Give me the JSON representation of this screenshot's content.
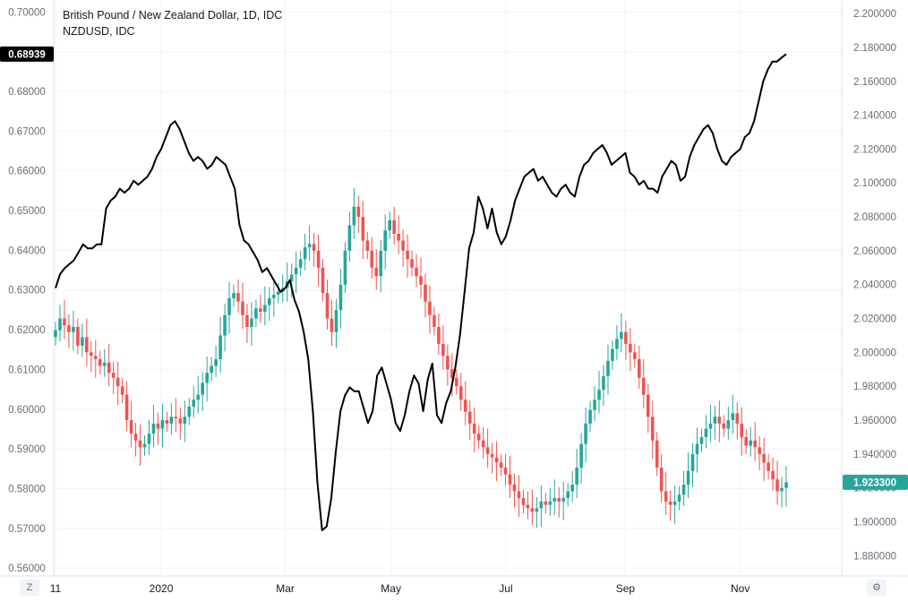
{
  "legend": {
    "line1": "British Pound / New Zealand Dollar, 1D, IDC",
    "line2": "NZDUSD, IDC"
  },
  "corner": {
    "left_label": "Z",
    "right_icon": "settings-icon"
  },
  "colors": {
    "up": "#26a69a",
    "down": "#ef5350",
    "line": "#000000",
    "grid": "#f0f3fa",
    "axis_text": "#6a6d78",
    "left_badge": "#000000",
    "right_badge": "#26a69a"
  },
  "chart_data": {
    "type": "line",
    "x_labels": [
      "11",
      "2020",
      "Mar",
      "May",
      "Jul",
      "Sep",
      "Nov"
    ],
    "left_axis": {
      "ticks": [
        "0.70000",
        "0.69000",
        "0.68000",
        "0.67000",
        "0.66000",
        "0.65000",
        "0.64000",
        "0.63000",
        "0.62000",
        "0.61000",
        "0.60000",
        "0.59000",
        "0.58000",
        "0.57000",
        "0.56000"
      ],
      "range": [
        0.558,
        0.703
      ],
      "current_label": "0.68939",
      "current_value": 0.68939
    },
    "right_axis": {
      "ticks": [
        "2.200000",
        "2.180000",
        "2.160000",
        "2.140000",
        "2.120000",
        "2.100000",
        "2.080000",
        "2.060000",
        "2.040000",
        "2.020000",
        "2.000000",
        "1.980000",
        "1.960000",
        "1.940000",
        "1.920000",
        "1.900000",
        "1.880000"
      ],
      "range": [
        1.868,
        2.208
      ],
      "current_label": "1.923300",
      "current_value": 1.9233
    },
    "series": [
      {
        "name": "NZDUSD, IDC",
        "type": "line",
        "axis": "left",
        "values": [
          0.6305,
          0.634,
          0.6355,
          0.6365,
          0.6375,
          0.6395,
          0.6415,
          0.6405,
          0.6405,
          0.6415,
          0.6415,
          0.6505,
          0.6525,
          0.6535,
          0.6555,
          0.6545,
          0.6555,
          0.6575,
          0.6565,
          0.6575,
          0.6585,
          0.6605,
          0.6635,
          0.6655,
          0.6685,
          0.6715,
          0.6725,
          0.6705,
          0.6675,
          0.6645,
          0.6625,
          0.6635,
          0.6625,
          0.6605,
          0.6615,
          0.6635,
          0.6625,
          0.6615,
          0.6585,
          0.6555,
          0.6465,
          0.6425,
          0.6415,
          0.6395,
          0.6375,
          0.6345,
          0.6355,
          0.6335,
          0.6315,
          0.6295,
          0.6305,
          0.6325,
          0.6275,
          0.6245,
          0.6195,
          0.6125,
          0.5995,
          0.5815,
          0.5695,
          0.5705,
          0.5775,
          0.5895,
          0.5995,
          0.6035,
          0.6055,
          0.6045,
          0.6045,
          0.6005,
          0.5965,
          0.5995,
          0.6085,
          0.6105,
          0.6065,
          0.6025,
          0.5965,
          0.5945,
          0.5985,
          0.6045,
          0.6085,
          0.6065,
          0.5995,
          0.6075,
          0.6115,
          0.5985,
          0.5965,
          0.6015,
          0.6045,
          0.6105,
          0.6185,
          0.6295,
          0.6405,
          0.6445,
          0.6535,
          0.6505,
          0.6455,
          0.6505,
          0.6445,
          0.6415,
          0.6435,
          0.6475,
          0.6525,
          0.6555,
          0.6585,
          0.6595,
          0.6605,
          0.6575,
          0.6585,
          0.6565,
          0.6545,
          0.6535,
          0.6555,
          0.6565,
          0.6545,
          0.6535,
          0.6585,
          0.6615,
          0.6625,
          0.6645,
          0.6655,
          0.6665,
          0.6645,
          0.6615,
          0.6625,
          0.6635,
          0.6645,
          0.6595,
          0.6585,
          0.6565,
          0.6575,
          0.6555,
          0.6555,
          0.6545,
          0.6585,
          0.6605,
          0.6625,
          0.6615,
          0.6575,
          0.6585,
          0.6635,
          0.6665,
          0.6685,
          0.6705,
          0.6715,
          0.6695,
          0.6655,
          0.6625,
          0.6615,
          0.6635,
          0.6645,
          0.6655,
          0.6685,
          0.6695,
          0.6725,
          0.6775,
          0.6825,
          0.6855,
          0.6875,
          0.6875,
          0.6885,
          0.6894
        ]
      },
      {
        "name": "British Pound / New Zealand Dollar, 1D, IDC",
        "type": "candlestick",
        "axis": "right",
        "values": [
          2.013,
          2.02,
          2.016,
          2.012,
          2.015,
          2.004,
          2.009,
          2.0,
          1.998,
          1.996,
          1.992,
          1.994,
          1.988,
          1.985,
          1.98,
          1.975,
          1.96,
          1.952,
          1.948,
          1.944,
          1.946,
          1.952,
          1.958,
          1.955,
          1.96,
          1.958,
          1.962,
          1.961,
          1.958,
          1.962,
          1.968,
          1.972,
          1.975,
          1.982,
          1.988,
          1.992,
          1.996,
          2.01,
          2.022,
          2.032,
          2.035,
          2.03,
          2.022,
          2.015,
          2.02,
          2.026,
          2.024,
          2.028,
          2.032,
          2.034,
          2.036,
          2.038,
          2.042,
          2.046,
          2.05,
          2.055,
          2.062,
          2.064,
          2.06,
          2.05,
          2.035,
          2.02,
          2.012,
          2.025,
          2.04,
          2.06,
          2.075,
          2.086,
          2.08,
          2.066,
          2.06,
          2.05,
          2.045,
          2.06,
          2.072,
          2.078,
          2.07,
          2.066,
          2.06,
          2.055,
          2.05,
          2.045,
          2.04,
          2.03,
          2.022,
          2.015,
          2.005,
          1.998,
          1.99,
          1.985,
          1.98,
          1.972,
          1.965,
          1.958,
          1.952,
          1.948,
          1.944,
          1.94,
          1.938,
          1.935,
          1.932,
          1.928,
          1.922,
          1.918,
          1.914,
          1.91,
          1.908,
          1.906,
          1.908,
          1.912,
          1.91,
          1.912,
          1.914,
          1.912,
          1.914,
          1.918,
          1.922,
          1.932,
          1.946,
          1.958,
          1.966,
          1.972,
          1.978,
          1.986,
          1.995,
          2.002,
          2.008,
          2.012,
          2.005,
          2.0,
          1.996,
          1.985,
          1.975,
          1.962,
          1.948,
          1.932,
          1.918,
          1.912,
          1.91,
          1.912,
          1.916,
          1.922,
          1.93,
          1.94,
          1.946,
          1.95,
          1.955,
          1.958,
          1.962,
          1.958,
          1.955,
          1.96,
          1.964,
          1.958,
          1.95,
          1.945,
          1.948,
          1.944,
          1.94,
          1.935,
          1.93,
          1.925,
          1.918,
          1.92,
          1.9233
        ]
      }
    ],
    "grid": true,
    "legend_position": "top-left"
  }
}
